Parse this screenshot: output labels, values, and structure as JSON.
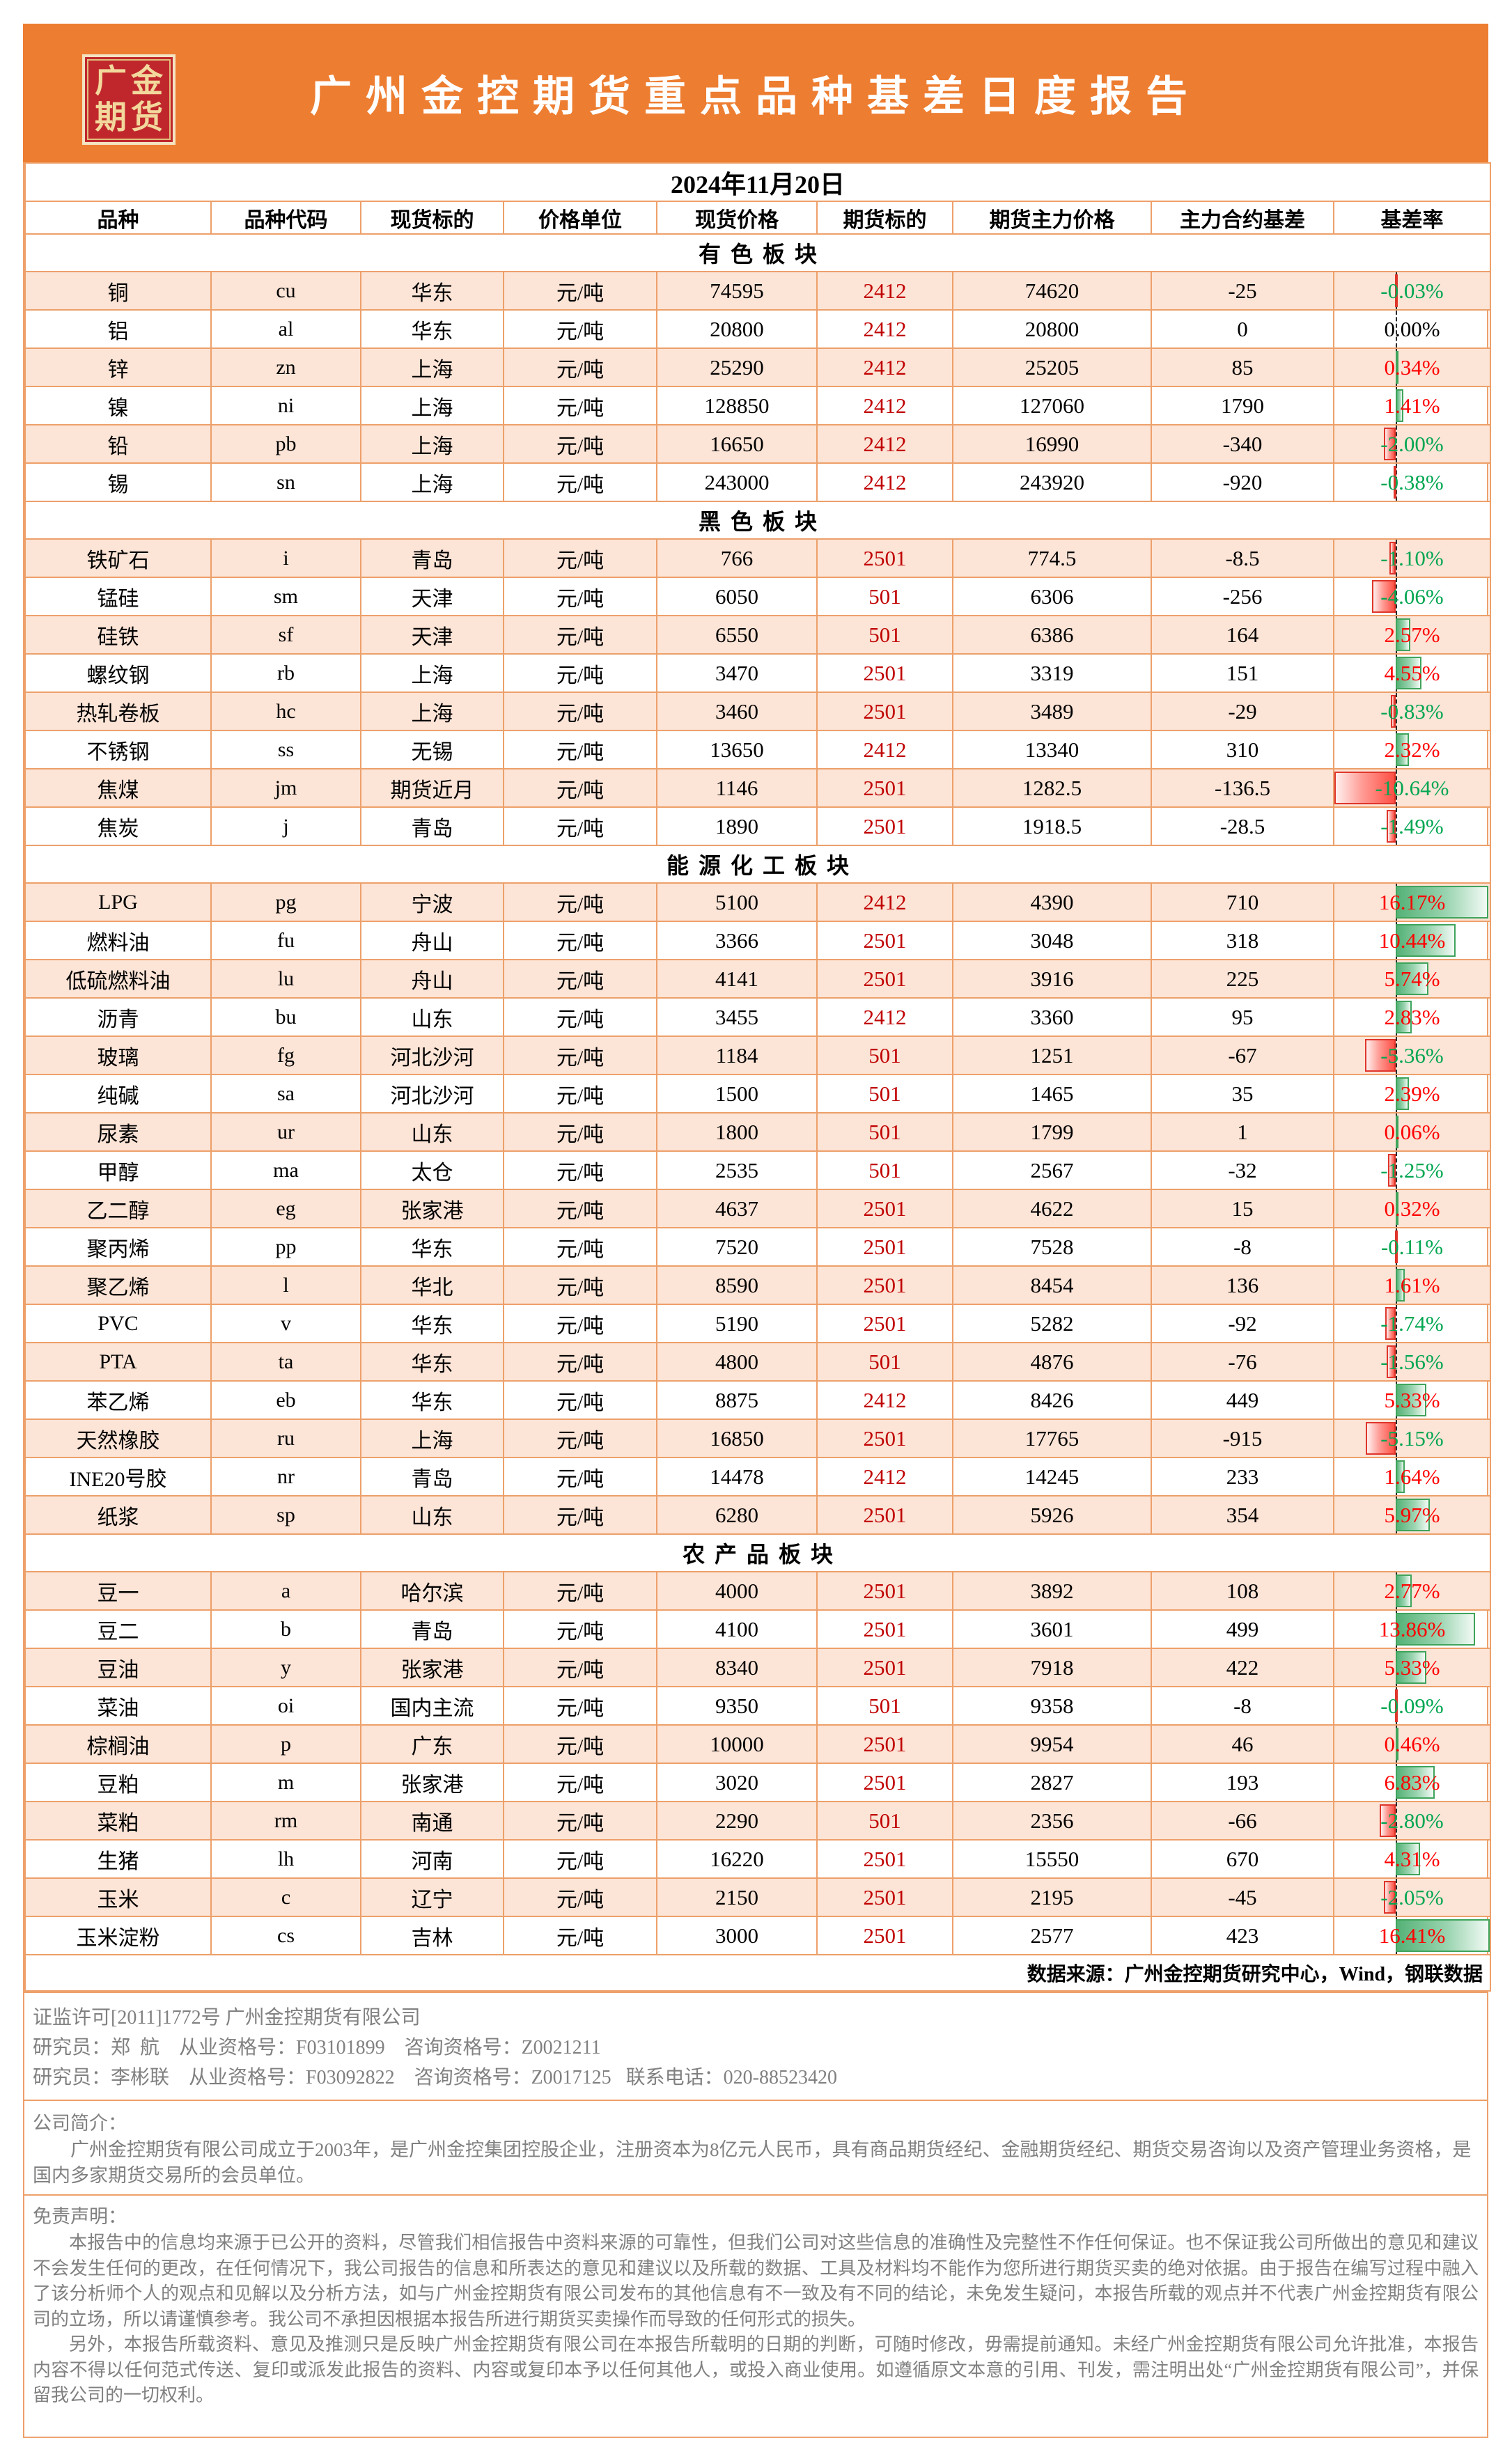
{
  "report": {
    "logo_line1": "广金",
    "logo_line2": "期货",
    "title": "广州金控期货重点品种基差日度报告",
    "date": "2024年11月20日",
    "columns": [
      "品种",
      "品种代码",
      "现货标的",
      "价格单位",
      "现货价格",
      "期货标的",
      "期货主力价格",
      "主力合约基差",
      "基差率"
    ],
    "source_note": "数据来源：广州金控期货研究中心，Wind，钢联数据"
  },
  "colors": {
    "banner_orange": "#ED7D31",
    "logo_red": "#C0272D",
    "logo_gold": "#F2D89C",
    "grid_orange": "#EDA06A",
    "row_peach": "#FCE4D6",
    "up_red": "#FF0000",
    "down_green": "#00A651",
    "contract_red": "#C00000",
    "bar_pos_green": "#55B277",
    "bar_neg_red": "#FF4F44"
  },
  "sections": [
    {
      "title": "有色板块",
      "rows": [
        {
          "name": "铜",
          "code": "cu",
          "spot_target": "华东",
          "unit": "元/吨",
          "spot_price": "74595",
          "contract": "2412",
          "futures_price": "74620",
          "basis": "-25",
          "rate": -0.03,
          "rate_label": "-0.03%"
        },
        {
          "name": "铝",
          "code": "al",
          "spot_target": "华东",
          "unit": "元/吨",
          "spot_price": "20800",
          "contract": "2412",
          "futures_price": "20800",
          "basis": "0",
          "rate": 0.0,
          "rate_label": "0.00%"
        },
        {
          "name": "锌",
          "code": "zn",
          "spot_target": "上海",
          "unit": "元/吨",
          "spot_price": "25290",
          "contract": "2412",
          "futures_price": "25205",
          "basis": "85",
          "rate": 0.34,
          "rate_label": "0.34%"
        },
        {
          "name": "镍",
          "code": "ni",
          "spot_target": "上海",
          "unit": "元/吨",
          "spot_price": "128850",
          "contract": "2412",
          "futures_price": "127060",
          "basis": "1790",
          "rate": 1.41,
          "rate_label": "1.41%"
        },
        {
          "name": "铅",
          "code": "pb",
          "spot_target": "上海",
          "unit": "元/吨",
          "spot_price": "16650",
          "contract": "2412",
          "futures_price": "16990",
          "basis": "-340",
          "rate": -2.0,
          "rate_label": "-2.00%"
        },
        {
          "name": "锡",
          "code": "sn",
          "spot_target": "上海",
          "unit": "元/吨",
          "spot_price": "243000",
          "contract": "2412",
          "futures_price": "243920",
          "basis": "-920",
          "rate": -0.38,
          "rate_label": "-0.38%"
        }
      ]
    },
    {
      "title": "黑色板块",
      "rows": [
        {
          "name": "铁矿石",
          "code": "i",
          "spot_target": "青岛",
          "unit": "元/吨",
          "spot_price": "766",
          "contract": "2501",
          "futures_price": "774.5",
          "basis": "-8.5",
          "rate": -1.1,
          "rate_label": "-1.10%"
        },
        {
          "name": "锰硅",
          "code": "sm",
          "spot_target": "天津",
          "unit": "元/吨",
          "spot_price": "6050",
          "contract": "501",
          "futures_price": "6306",
          "basis": "-256",
          "rate": -4.06,
          "rate_label": "-4.06%"
        },
        {
          "name": "硅铁",
          "code": "sf",
          "spot_target": "天津",
          "unit": "元/吨",
          "spot_price": "6550",
          "contract": "501",
          "futures_price": "6386",
          "basis": "164",
          "rate": 2.57,
          "rate_label": "2.57%"
        },
        {
          "name": "螺纹钢",
          "code": "rb",
          "spot_target": "上海",
          "unit": "元/吨",
          "spot_price": "3470",
          "contract": "2501",
          "futures_price": "3319",
          "basis": "151",
          "rate": 4.55,
          "rate_label": "4.55%"
        },
        {
          "name": "热轧卷板",
          "code": "hc",
          "spot_target": "上海",
          "unit": "元/吨",
          "spot_price": "3460",
          "contract": "2501",
          "futures_price": "3489",
          "basis": "-29",
          "rate": -0.83,
          "rate_label": "-0.83%"
        },
        {
          "name": "不锈钢",
          "code": "ss",
          "spot_target": "无锡",
          "unit": "元/吨",
          "spot_price": "13650",
          "contract": "2412",
          "futures_price": "13340",
          "basis": "310",
          "rate": 2.32,
          "rate_label": "2.32%"
        },
        {
          "name": "焦煤",
          "code": "jm",
          "spot_target": "期货近月",
          "unit": "元/吨",
          "spot_price": "1146",
          "contract": "2501",
          "futures_price": "1282.5",
          "basis": "-136.5",
          "rate": -10.64,
          "rate_label": "-10.64%"
        },
        {
          "name": "焦炭",
          "code": "j",
          "spot_target": "青岛",
          "unit": "元/吨",
          "spot_price": "1890",
          "contract": "2501",
          "futures_price": "1918.5",
          "basis": "-28.5",
          "rate": -1.49,
          "rate_label": "-1.49%"
        }
      ]
    },
    {
      "title": "能源化工板块",
      "rows": [
        {
          "name": "LPG",
          "code": "pg",
          "spot_target": "宁波",
          "unit": "元/吨",
          "spot_price": "5100",
          "contract": "2412",
          "futures_price": "4390",
          "basis": "710",
          "rate": 16.17,
          "rate_label": "16.17%"
        },
        {
          "name": "燃料油",
          "code": "fu",
          "spot_target": "舟山",
          "unit": "元/吨",
          "spot_price": "3366",
          "contract": "2501",
          "futures_price": "3048",
          "basis": "318",
          "rate": 10.44,
          "rate_label": "10.44%"
        },
        {
          "name": "低硫燃料油",
          "code": "lu",
          "spot_target": "舟山",
          "unit": "元/吨",
          "spot_price": "4141",
          "contract": "2501",
          "futures_price": "3916",
          "basis": "225",
          "rate": 5.74,
          "rate_label": "5.74%"
        },
        {
          "name": "沥青",
          "code": "bu",
          "spot_target": "山东",
          "unit": "元/吨",
          "spot_price": "3455",
          "contract": "2412",
          "futures_price": "3360",
          "basis": "95",
          "rate": 2.83,
          "rate_label": "2.83%"
        },
        {
          "name": "玻璃",
          "code": "fg",
          "spot_target": "河北沙河",
          "unit": "元/吨",
          "spot_price": "1184",
          "contract": "501",
          "futures_price": "1251",
          "basis": "-67",
          "rate": -5.36,
          "rate_label": "-5.36%"
        },
        {
          "name": "纯碱",
          "code": "sa",
          "spot_target": "河北沙河",
          "unit": "元/吨",
          "spot_price": "1500",
          "contract": "501",
          "futures_price": "1465",
          "basis": "35",
          "rate": 2.39,
          "rate_label": "2.39%"
        },
        {
          "name": "尿素",
          "code": "ur",
          "spot_target": "山东",
          "unit": "元/吨",
          "spot_price": "1800",
          "contract": "501",
          "futures_price": "1799",
          "basis": "1",
          "rate": 0.06,
          "rate_label": "0.06%"
        },
        {
          "name": "甲醇",
          "code": "ma",
          "spot_target": "太仓",
          "unit": "元/吨",
          "spot_price": "2535",
          "contract": "501",
          "futures_price": "2567",
          "basis": "-32",
          "rate": -1.25,
          "rate_label": "-1.25%"
        },
        {
          "name": "乙二醇",
          "code": "eg",
          "spot_target": "张家港",
          "unit": "元/吨",
          "spot_price": "4637",
          "contract": "2501",
          "futures_price": "4622",
          "basis": "15",
          "rate": 0.32,
          "rate_label": "0.32%"
        },
        {
          "name": "聚丙烯",
          "code": "pp",
          "spot_target": "华东",
          "unit": "元/吨",
          "spot_price": "7520",
          "contract": "2501",
          "futures_price": "7528",
          "basis": "-8",
          "rate": -0.11,
          "rate_label": "-0.11%"
        },
        {
          "name": "聚乙烯",
          "code": "l",
          "spot_target": "华北",
          "unit": "元/吨",
          "spot_price": "8590",
          "contract": "2501",
          "futures_price": "8454",
          "basis": "136",
          "rate": 1.61,
          "rate_label": "1.61%"
        },
        {
          "name": "PVC",
          "code": "v",
          "spot_target": "华东",
          "unit": "元/吨",
          "spot_price": "5190",
          "contract": "2501",
          "futures_price": "5282",
          "basis": "-92",
          "rate": -1.74,
          "rate_label": "-1.74%"
        },
        {
          "name": "PTA",
          "code": "ta",
          "spot_target": "华东",
          "unit": "元/吨",
          "spot_price": "4800",
          "contract": "501",
          "futures_price": "4876",
          "basis": "-76",
          "rate": -1.56,
          "rate_label": "-1.56%"
        },
        {
          "name": "苯乙烯",
          "code": "eb",
          "spot_target": "华东",
          "unit": "元/吨",
          "spot_price": "8875",
          "contract": "2412",
          "futures_price": "8426",
          "basis": "449",
          "rate": 5.33,
          "rate_label": "5.33%"
        },
        {
          "name": "天然橡胶",
          "code": "ru",
          "spot_target": "上海",
          "unit": "元/吨",
          "spot_price": "16850",
          "contract": "2501",
          "futures_price": "17765",
          "basis": "-915",
          "rate": -5.15,
          "rate_label": "-5.15%"
        },
        {
          "name": "INE20号胶",
          "code": "nr",
          "spot_target": "青岛",
          "unit": "元/吨",
          "spot_price": "14478",
          "contract": "2412",
          "futures_price": "14245",
          "basis": "233",
          "rate": 1.64,
          "rate_label": "1.64%"
        },
        {
          "name": "纸浆",
          "code": "sp",
          "spot_target": "山东",
          "unit": "元/吨",
          "spot_price": "6280",
          "contract": "2501",
          "futures_price": "5926",
          "basis": "354",
          "rate": 5.97,
          "rate_label": "5.97%"
        }
      ]
    },
    {
      "title": "农产品板块",
      "rows": [
        {
          "name": "豆一",
          "code": "a",
          "spot_target": "哈尔滨",
          "unit": "元/吨",
          "spot_price": "4000",
          "contract": "2501",
          "futures_price": "3892",
          "basis": "108",
          "rate": 2.77,
          "rate_label": "2.77%"
        },
        {
          "name": "豆二",
          "code": "b",
          "spot_target": "青岛",
          "unit": "元/吨",
          "spot_price": "4100",
          "contract": "2501",
          "futures_price": "3601",
          "basis": "499",
          "rate": 13.86,
          "rate_label": "13.86%"
        },
        {
          "name": "豆油",
          "code": "y",
          "spot_target": "张家港",
          "unit": "元/吨",
          "spot_price": "8340",
          "contract": "2501",
          "futures_price": "7918",
          "basis": "422",
          "rate": 5.33,
          "rate_label": "5.33%"
        },
        {
          "name": "菜油",
          "code": "oi",
          "spot_target": "国内主流",
          "unit": "元/吨",
          "spot_price": "9350",
          "contract": "501",
          "futures_price": "9358",
          "basis": "-8",
          "rate": -0.09,
          "rate_label": "-0.09%"
        },
        {
          "name": "棕榈油",
          "code": "p",
          "spot_target": "广东",
          "unit": "元/吨",
          "spot_price": "10000",
          "contract": "2501",
          "futures_price": "9954",
          "basis": "46",
          "rate": 0.46,
          "rate_label": "0.46%"
        },
        {
          "name": "豆粕",
          "code": "m",
          "spot_target": "张家港",
          "unit": "元/吨",
          "spot_price": "3020",
          "contract": "2501",
          "futures_price": "2827",
          "basis": "193",
          "rate": 6.83,
          "rate_label": "6.83%"
        },
        {
          "name": "菜粕",
          "code": "rm",
          "spot_target": "南通",
          "unit": "元/吨",
          "spot_price": "2290",
          "contract": "501",
          "futures_price": "2356",
          "basis": "-66",
          "rate": -2.8,
          "rate_label": "-2.80%"
        },
        {
          "name": "生猪",
          "code": "lh",
          "spot_target": "河南",
          "unit": "元/吨",
          "spot_price": "16220",
          "contract": "2501",
          "futures_price": "15550",
          "basis": "670",
          "rate": 4.31,
          "rate_label": "4.31%"
        },
        {
          "name": "玉米",
          "code": "c",
          "spot_target": "辽宁",
          "unit": "元/吨",
          "spot_price": "2150",
          "contract": "2501",
          "futures_price": "2195",
          "basis": "-45",
          "rate": -2.05,
          "rate_label": "-2.05%"
        },
        {
          "name": "玉米淀粉",
          "code": "cs",
          "spot_target": "吉林",
          "unit": "元/吨",
          "spot_price": "3000",
          "contract": "2501",
          "futures_price": "2577",
          "basis": "423",
          "rate": 16.41,
          "rate_label": "16.41%"
        }
      ]
    }
  ],
  "footer": {
    "reg_lines": [
      "证监许可[2011]1772号 广州金控期货有限公司",
      "研究员：郑  航    从业资格号：F03101899    咨询资格号：Z0021211",
      "研究员：李彬联    从业资格号：F03092822    咨询资格号：Z0017125   联系电话：020-88523420"
    ],
    "intro_heading": "公司简介：",
    "intro_text": "广州金控期货有限公司成立于2003年，是广州金控集团控股企业，注册资本为8亿元人民币，具有商品期货经纪、金融期货经纪、期货交易咨询以及资产管理业务资格，是国内多家期货交易所的会员单位。",
    "disclaimer_heading": "免责声明：",
    "disclaimer_p1": "本报告中的信息均来源于已公开的资料，尽管我们相信报告中资料来源的可靠性，但我们公司对这些信息的准确性及完整性不作任何保证。也不保证我公司所做出的意见和建议不会发生任何的更改，在任何情况下，我公司报告的信息和所表达的意见和建议以及所载的数据、工具及材料均不能作为您所进行期货买卖的绝对依据。由于报告在编写过程中融入了该分析师个人的观点和见解以及分析方法，如与广州金控期货有限公司发布的其他信息有不一致及有不同的结论，未免发生疑问，本报告所载的观点并不代表广州金控期货有限公司的立场，所以请谨慎参考。我公司不承担因根据本报告所进行期货买卖操作而导致的任何形式的损失。",
    "disclaimer_p2": "另外，本报告所载资料、意见及推测只是反映广州金控期货有限公司在本报告所载明的日期的判断，可随时修改，毋需提前通知。未经广州金控期货有限公司允许批准，本报告内容不得以任何范式传送、复印或派发此报告的资料、内容或复印本予以任何其他人，或投入商业使用。如遵循原文本意的引用、刊发，需注明出处“广州金控期货有限公司”，并保留我公司的一切权利。"
  }
}
